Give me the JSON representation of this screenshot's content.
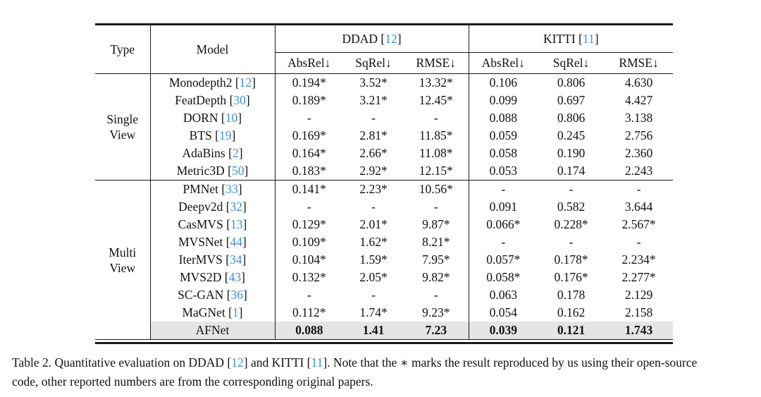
{
  "colors": {
    "citation": "#3d8fd6",
    "highlight": "#e5e5e5",
    "rule": "#1a1a1a"
  },
  "cite_format": {
    "open": " [",
    "close": "]"
  },
  "table": {
    "headers": {
      "type": "Type",
      "model": "Model",
      "groups": [
        {
          "name": "DDAD",
          "cite": "12"
        },
        {
          "name": "KITTI",
          "cite": "11"
        }
      ],
      "metrics": [
        "AbsRel↓",
        "SqRel↓",
        "RMSE↓"
      ]
    },
    "sections": [
      {
        "type_label_lines": [
          "Single",
          "View"
        ],
        "rows": [
          {
            "model": "Monodepth2",
            "cite": "12",
            "values": [
              "0.194*",
              "3.52*",
              "13.32*",
              "0.106",
              "0.806",
              "4.630"
            ]
          },
          {
            "model": "FeatDepth",
            "cite": "30",
            "values": [
              "0.189*",
              "3.21*",
              "12.45*",
              "0.099",
              "0.697",
              "4.427"
            ]
          },
          {
            "model": "DORN",
            "cite": "10",
            "values": [
              "-",
              "-",
              "-",
              "0.088",
              "0.806",
              "3.138"
            ]
          },
          {
            "model": "BTS",
            "cite": "19",
            "values": [
              "0.169*",
              "2.81*",
              "11.85*",
              "0.059",
              "0.245",
              "2.756"
            ]
          },
          {
            "model": "AdaBins",
            "cite": "2",
            "values": [
              "0.164*",
              "2.66*",
              "11.08*",
              "0.058",
              "0.190",
              "2.360"
            ]
          },
          {
            "model": "Metric3D",
            "cite": "50",
            "values": [
              "0.183*",
              "2.92*",
              "12.15*",
              "0.053",
              "0.174",
              "2.243"
            ]
          }
        ]
      },
      {
        "type_label_lines": [
          "Multi",
          "View"
        ],
        "rows": [
          {
            "model": "PMNet",
            "cite": "33",
            "values": [
              "0.141*",
              "2.23*",
              "10.56*",
              "-",
              "-",
              "-"
            ]
          },
          {
            "model": "Deepv2d",
            "cite": "32",
            "values": [
              "-",
              "-",
              "-",
              "0.091",
              "0.582",
              "3.644"
            ]
          },
          {
            "model": "CasMVS",
            "cite": "13",
            "values": [
              "0.129*",
              "2.01*",
              "9.87*",
              "0.066*",
              "0.228*",
              "2.567*"
            ]
          },
          {
            "model": "MVSNet",
            "cite": "44",
            "values": [
              "0.109*",
              "1.62*",
              "8.21*",
              "-",
              "-",
              "-"
            ]
          },
          {
            "model": "IterMVS",
            "cite": "34",
            "values": [
              "0.104*",
              "1.59*",
              "7.95*",
              "0.057*",
              "0.178*",
              "2.234*"
            ]
          },
          {
            "model": "MVS2D",
            "cite": "43",
            "values": [
              "0.132*",
              "2.05*",
              "9.82*",
              "0.058*",
              "0.176*",
              "2.277*"
            ]
          },
          {
            "model": "SC-GAN",
            "cite": "36",
            "values": [
              "-",
              "-",
              "-",
              "0.063",
              "0.178",
              "2.129"
            ]
          },
          {
            "model": "MaGNet",
            "cite": "1",
            "values": [
              "0.112*",
              "1.74*",
              "9.23*",
              "0.054",
              "0.162",
              "2.158"
            ]
          },
          {
            "model": "AFNet",
            "cite": null,
            "values": [
              "0.088",
              "1.41",
              "7.23",
              "0.039",
              "0.121",
              "1.743"
            ],
            "highlight": true,
            "bold_values": true
          }
        ]
      }
    ]
  },
  "caption": {
    "seg1": "Table 2. Quantitative evaluation on DDAD [",
    "cite1": "12",
    "seg2": "] and KITTI [",
    "cite2": "11",
    "seg3": "]. Note that the ∗ marks the result reproduced by us using their open-source",
    "seg4": "code, other reported numbers are from the corresponding original papers."
  }
}
